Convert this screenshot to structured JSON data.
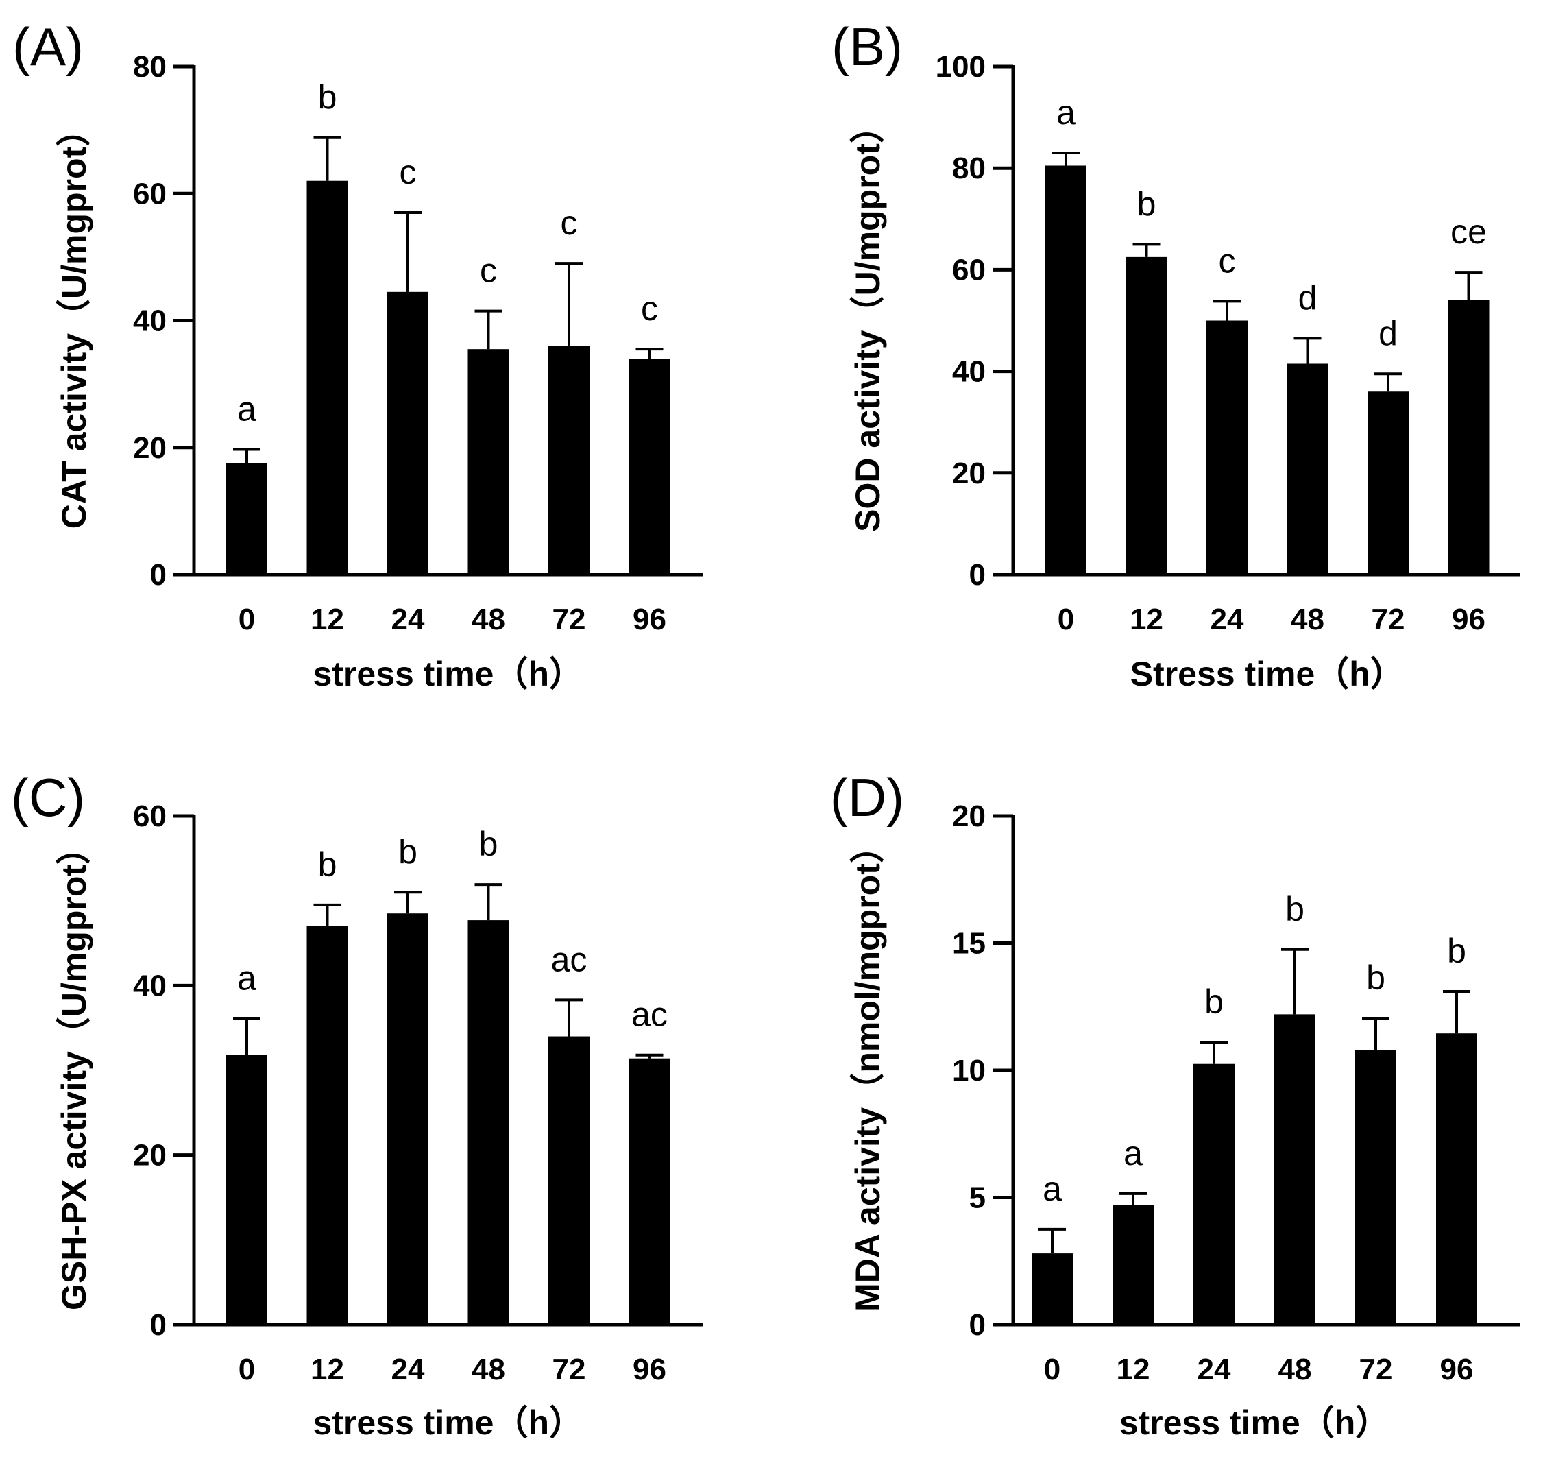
{
  "chart_data": [
    {
      "type": "bar",
      "panel": "(A)",
      "categories": [
        "0",
        "12",
        "24",
        "48",
        "72",
        "96"
      ],
      "values": [
        17.5,
        62,
        44.5,
        35.5,
        36,
        34
      ],
      "errors": [
        2.2,
        6.8,
        12.5,
        6,
        13,
        1.5
      ],
      "sig_letters": [
        "a",
        "b",
        "c",
        "c",
        "c",
        "c"
      ],
      "xlabel": "stress time（h）",
      "ylabel": "CAT activity（U/mgprot）",
      "ylim": [
        0,
        80
      ],
      "yticks": [
        0,
        20,
        40,
        60,
        80
      ],
      "bar_color": "#000000"
    },
    {
      "type": "bar",
      "panel": "(B)",
      "categories": [
        "0",
        "12",
        "24",
        "48",
        "72",
        "96"
      ],
      "values": [
        80.5,
        62.5,
        50,
        41.5,
        36,
        54
      ],
      "errors": [
        2.5,
        2.5,
        3.8,
        5,
        3.5,
        5.5
      ],
      "sig_letters": [
        "a",
        "b",
        "c",
        "d",
        "d",
        "ce"
      ],
      "xlabel": "Stress time（h）",
      "ylabel": "SOD activity（U/mgprot）",
      "ylim": [
        0,
        100
      ],
      "yticks": [
        0,
        20,
        40,
        60,
        80,
        100
      ],
      "bar_color": "#000000"
    },
    {
      "type": "bar",
      "panel": "(C)",
      "categories": [
        "0",
        "12",
        "24",
        "48",
        "72",
        "96"
      ],
      "values": [
        31.8,
        47,
        48.5,
        47.7,
        34,
        31.4
      ],
      "errors": [
        4.3,
        2.5,
        2.5,
        4.2,
        4.3,
        0.4
      ],
      "sig_letters": [
        "a",
        "b",
        "b",
        "b",
        "ac",
        "ac"
      ],
      "xlabel": "stress time（h）",
      "ylabel": "GSH-PX activity（U/mgprot）",
      "ylim": [
        0,
        60
      ],
      "yticks": [
        0,
        20,
        40,
        60
      ],
      "bar_color": "#000000"
    },
    {
      "type": "bar",
      "panel": "(D)",
      "categories": [
        "0",
        "12",
        "24",
        "48",
        "72",
        "96"
      ],
      "values": [
        2.8,
        4.7,
        10.25,
        12.2,
        10.8,
        11.45
      ],
      "errors": [
        0.95,
        0.45,
        0.85,
        2.55,
        1.25,
        1.65
      ],
      "sig_letters": [
        "a",
        "a",
        "b",
        "b",
        "b",
        "b"
      ],
      "xlabel": "stress time（h）",
      "ylabel": "MDA activity（nmol/mgprot）",
      "ylim": [
        0,
        20
      ],
      "yticks": [
        0,
        5,
        10,
        15,
        20
      ],
      "bar_color": "#000000"
    }
  ]
}
